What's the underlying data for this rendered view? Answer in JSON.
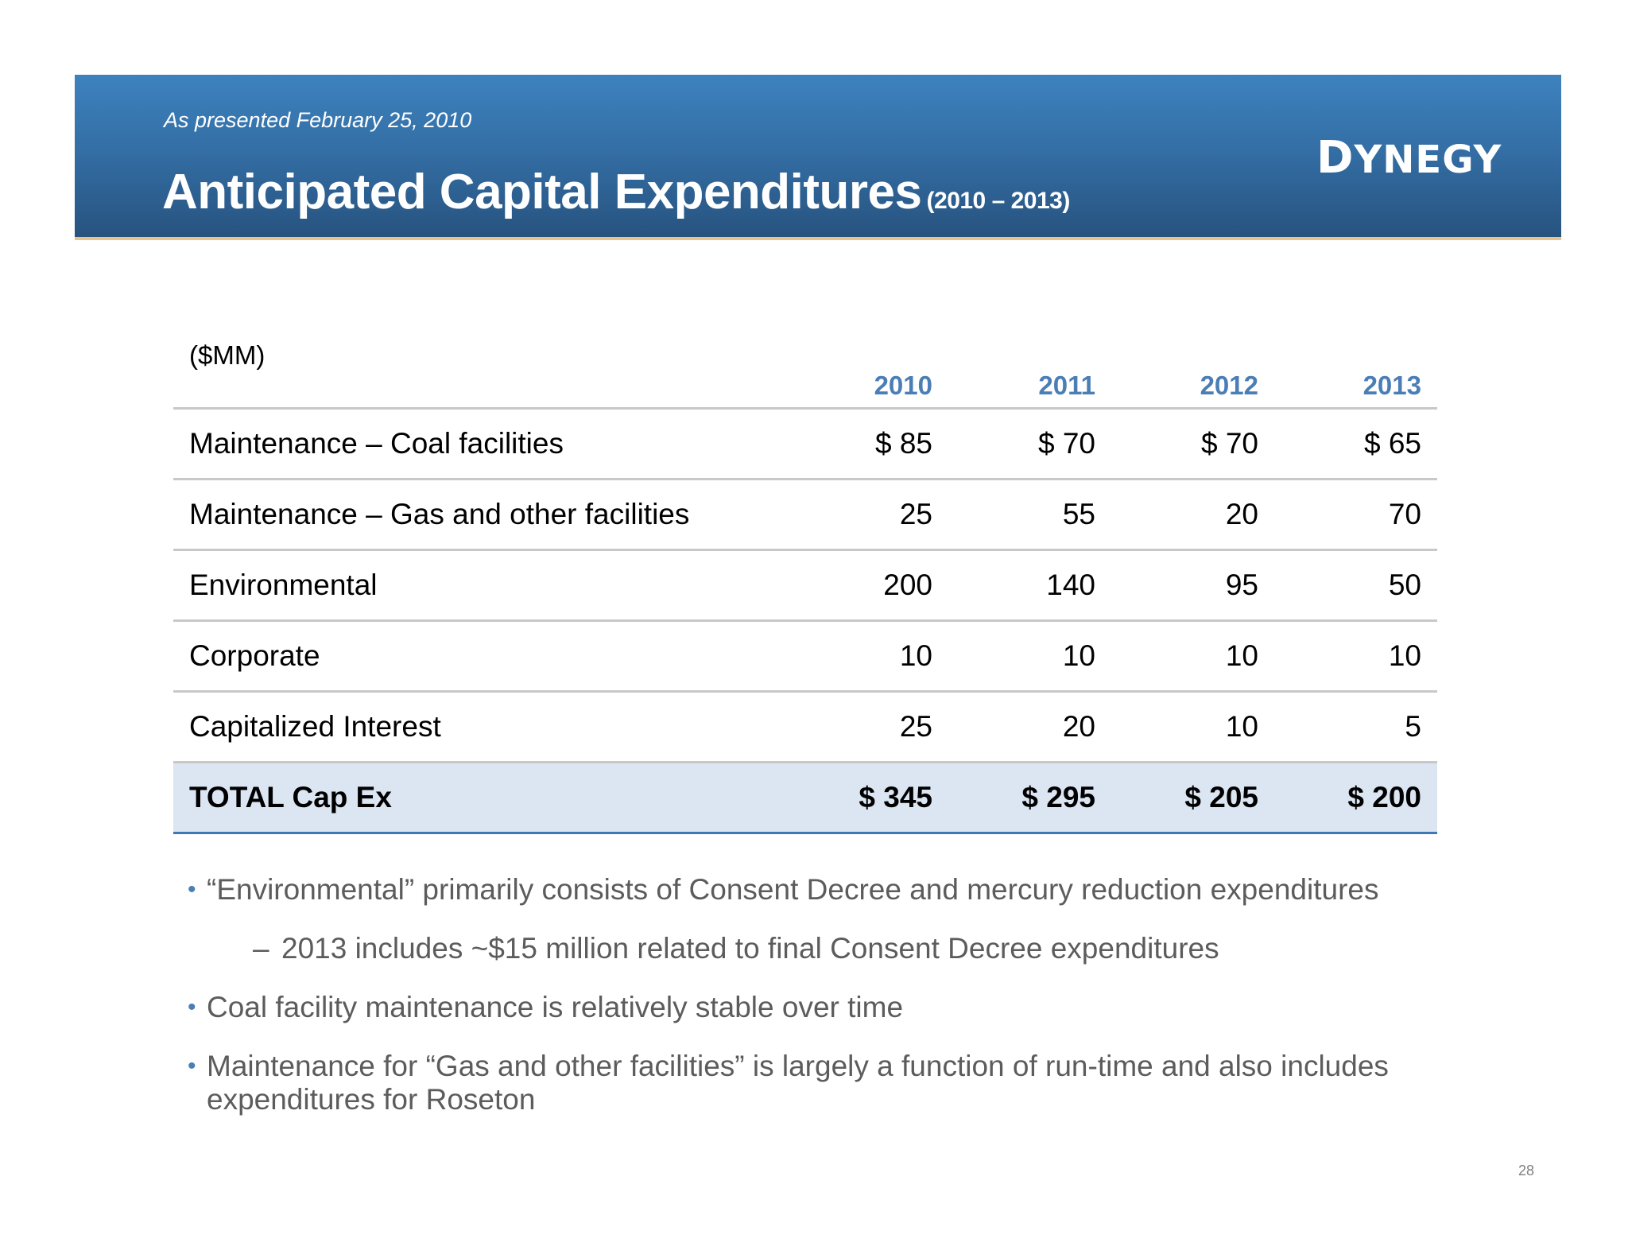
{
  "header": {
    "subtitle": "As presented February 25, 2010",
    "title": "Anticipated Capital Expenditures",
    "title_range": "(2010 – 2013)",
    "logo_initial": "D",
    "logo_rest": "YNEGY"
  },
  "table": {
    "unit_label": "($MM)",
    "years": [
      "2010",
      "2011",
      "2012",
      "2013"
    ],
    "rows": [
      {
        "label": "Maintenance – Coal facilities",
        "values": [
          "$ 85",
          "$ 70",
          "$ 70",
          "$ 65"
        ]
      },
      {
        "label": "Maintenance – Gas and other facilities",
        "values": [
          "25",
          "55",
          "20",
          "70"
        ]
      },
      {
        "label": "Environmental",
        "values": [
          "200",
          "140",
          "95",
          "50"
        ]
      },
      {
        "label": "Corporate",
        "values": [
          "10",
          "10",
          "10",
          "10"
        ]
      },
      {
        "label": "Capitalized Interest",
        "values": [
          "25",
          "20",
          "10",
          "5"
        ]
      }
    ],
    "total": {
      "label": "TOTAL Cap Ex",
      "values": [
        "$ 345",
        "$ 295",
        "$ 205",
        "$ 200"
      ]
    }
  },
  "notes": {
    "bullet_1": "“Environmental” primarily consists of Consent Decree and mercury reduction expenditures",
    "sub_bullet_1": "2013 includes ~$15 million related to final Consent Decree expenditures",
    "bullet_2": "Coal facility maintenance is relatively stable over time",
    "bullet_3": "Maintenance for “Gas and other facilities” is largely a function of run-time and also includes expenditures for Roseton"
  },
  "page_number": "28",
  "colors": {
    "header_blue": "#346fa6",
    "accent_blue": "#4a7eb5",
    "total_row_bg": "#dce5f2"
  }
}
